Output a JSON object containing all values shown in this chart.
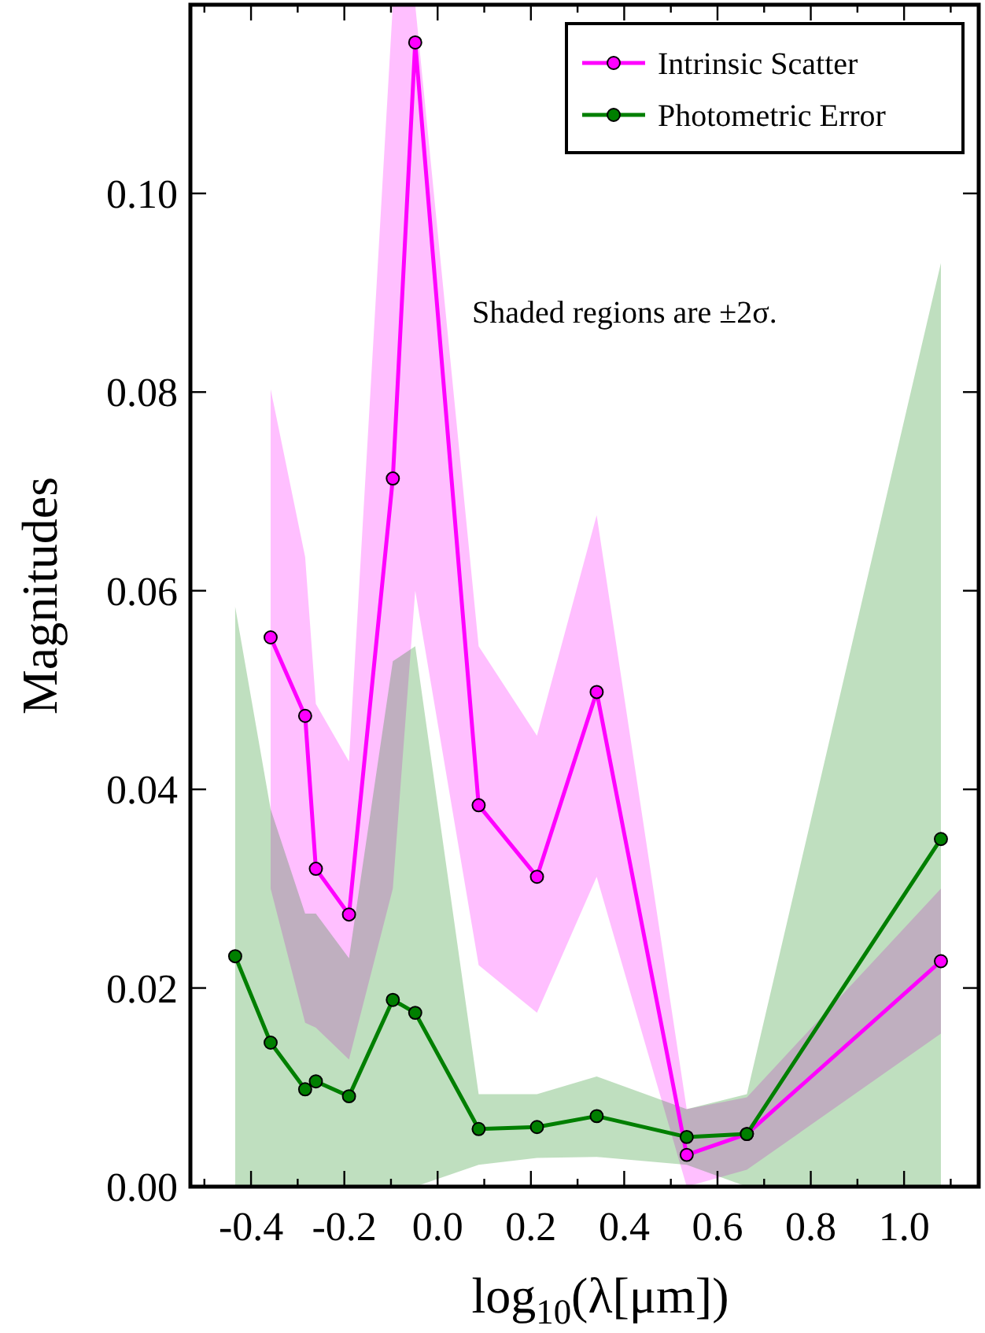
{
  "chart_data": {
    "type": "line",
    "xlabel": "log$_{10}$(λ[μm])",
    "ylabel": "Magnitudes",
    "annotations": [
      "Shaded regions are ±2σ."
    ],
    "xlim": [
      -0.53,
      1.16
    ],
    "ylim": [
      0,
      0.119
    ],
    "xticks": [
      {
        "value": -0.5,
        "label": null
      },
      -0.4,
      {
        "value": -0.3,
        "label": null
      },
      -0.2,
      {
        "value": -0.1,
        "label": null
      },
      {
        "value": 0,
        "label": "0.0"
      },
      {
        "value": 0.1,
        "label": null
      },
      0.2,
      {
        "value": 0.3,
        "label": null
      },
      0.4,
      {
        "value": 0.5,
        "label": null
      },
      0.6,
      {
        "value": 0.7,
        "label": null
      },
      0.8,
      {
        "value": 0.9,
        "label": null
      },
      {
        "value": 1,
        "label": "1.0"
      },
      {
        "value": 1.1,
        "label": null
      }
    ],
    "yticks": [
      {
        "value": 0,
        "label": "0.00"
      },
      {
        "value": 0.02,
        "label": "0.02"
      },
      {
        "value": 0.04,
        "label": "0.04"
      },
      {
        "value": 0.06,
        "label": "0.06"
      },
      {
        "value": 0.08,
        "label": "0.08"
      },
      {
        "value": 0.1,
        "label": "0.10"
      }
    ],
    "grid": false,
    "legend": "top right",
    "marker": "circle",
    "line_style": "solid",
    "x": [
      -0.434,
      -0.358,
      -0.284,
      -0.261,
      -0.19,
      -0.096,
      -0.048,
      0.088,
      0.213,
      0.341,
      0.534,
      0.663,
      1.079
    ],
    "series": [
      {
        "name": "Intrinsic Scatter",
        "color": "#ff00ff",
        "values": [
          null,
          0.0553,
          0.0474,
          0.032,
          0.0274,
          0.0713,
          0.1152,
          0.0384,
          0.0312,
          0.0498,
          0.0032,
          0.0053,
          0.0227
        ],
        "lower": [
          null,
          0.03,
          0.0165,
          0.016,
          0.0128,
          0.03,
          0.06,
          0.0223,
          0.0175,
          0.0312,
          0,
          0.0017,
          0.0154
        ],
        "upper": [
          null,
          0.0803,
          0.0634,
          0.0486,
          0.0428,
          0.119,
          0.119,
          0.0544,
          0.0454,
          0.0676,
          0.0078,
          0.009,
          0.03
        ]
      },
      {
        "name": "Photometric Error",
        "color": "#007f00",
        "values": [
          0.0232,
          0.0145,
          0.0098,
          0.0106,
          0.0091,
          0.0188,
          0.0175,
          0.0058,
          0.006,
          0.0071,
          0.005,
          0.0053,
          0.035
        ],
        "lower": [
          0,
          0,
          0,
          0,
          0,
          0,
          0,
          0.0022,
          0.0029,
          0.003,
          0.0022,
          0,
          0
        ],
        "upper": [
          0.0584,
          0.038,
          0.0275,
          0.0275,
          0.023,
          0.0529,
          0.0544,
          0.0093,
          0.0093,
          0.0111,
          0.0078,
          0.0093,
          0.093
        ]
      }
    ]
  }
}
